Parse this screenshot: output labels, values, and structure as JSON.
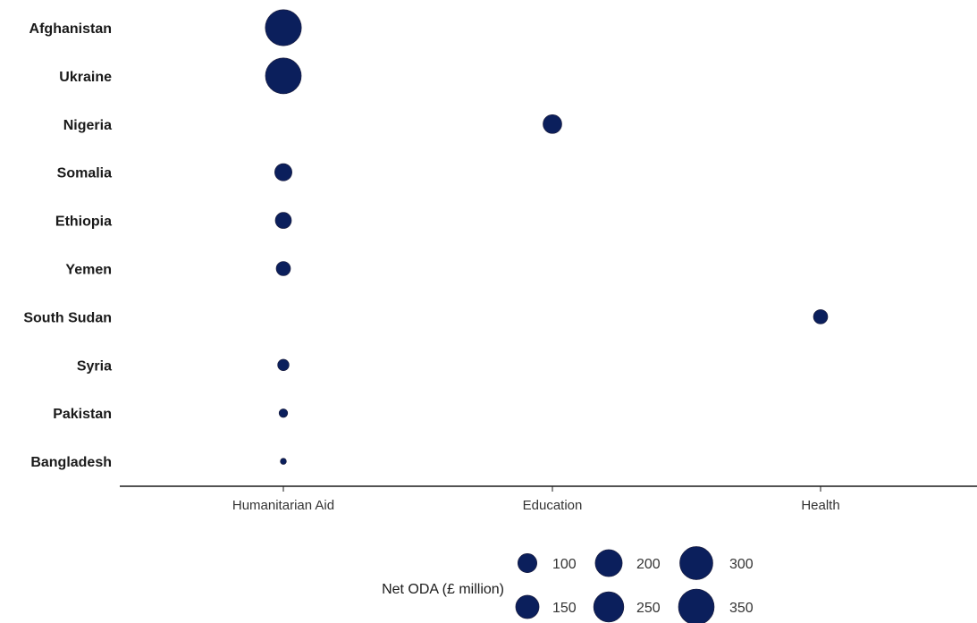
{
  "chart_data": {
    "type": "scatter",
    "title": "",
    "xlabel": "",
    "ylabel": "",
    "x_categories": [
      "Humanitarian Aid",
      "Education",
      "Health"
    ],
    "y_categories": [
      "Afghanistan",
      "Ukraine",
      "Nigeria",
      "Somalia",
      "Ethiopia",
      "Yemen",
      "South Sudan",
      "Syria",
      "Pakistan",
      "Bangladesh"
    ],
    "points": [
      {
        "country": "Afghanistan",
        "sector": "Humanitarian Aid",
        "value": 350
      },
      {
        "country": "Ukraine",
        "sector": "Humanitarian Aid",
        "value": 345
      },
      {
        "country": "Nigeria",
        "sector": "Education",
        "value": 95
      },
      {
        "country": "Somalia",
        "sector": "Humanitarian Aid",
        "value": 80
      },
      {
        "country": "Ethiopia",
        "sector": "Humanitarian Aid",
        "value": 70
      },
      {
        "country": "Yemen",
        "sector": "Humanitarian Aid",
        "value": 55
      },
      {
        "country": "South Sudan",
        "sector": "Health",
        "value": 55
      },
      {
        "country": "Syria",
        "sector": "Humanitarian Aid",
        "value": 35
      },
      {
        "country": "Pakistan",
        "sector": "Humanitarian Aid",
        "value": 20
      },
      {
        "country": "Bangladesh",
        "sector": "Humanitarian Aid",
        "value": 10
      }
    ],
    "size_legend": {
      "title": "Net ODA (£ million)",
      "keys": [
        {
          "value": 100,
          "label": "100"
        },
        {
          "value": 200,
          "label": "200"
        },
        {
          "value": 300,
          "label": "300"
        },
        {
          "value": 150,
          "label": "150"
        },
        {
          "value": 250,
          "label": "250"
        },
        {
          "value": 350,
          "label": "350"
        }
      ]
    },
    "marker_color": "#0b1f5c",
    "grid": false,
    "legend_position": "bottom"
  }
}
